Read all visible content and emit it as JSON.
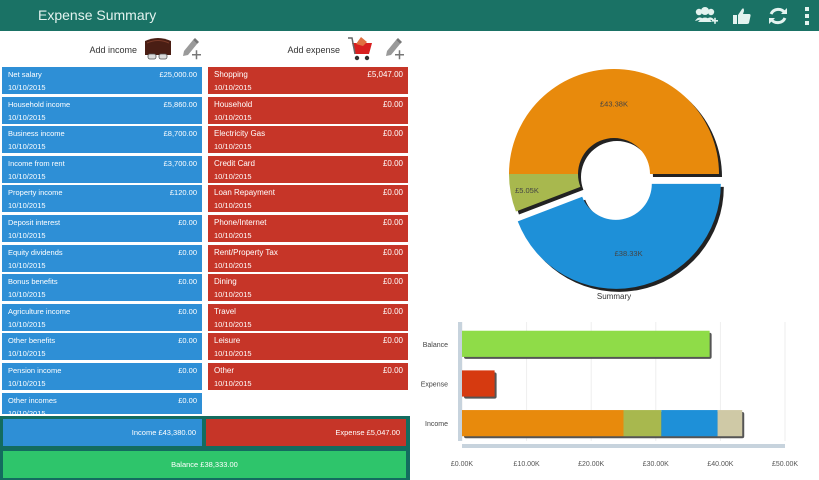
{
  "app": {
    "title": "Expense Summary",
    "actions": [
      {
        "name": "add-contact-icon"
      },
      {
        "name": "thumbs-up-icon"
      },
      {
        "name": "refresh-icon"
      },
      {
        "name": "more-vert-icon"
      }
    ]
  },
  "income": {
    "add_label": "Add income",
    "items": [
      {
        "name": "Net salary",
        "amount": "£25,000.00",
        "date": "10/10/2015"
      },
      {
        "name": "Household income",
        "amount": "£5,860.00",
        "date": "10/10/2015"
      },
      {
        "name": "Business income",
        "amount": "£8,700.00",
        "date": "10/10/2015"
      },
      {
        "name": "Income from rent",
        "amount": "£3,700.00",
        "date": "10/10/2015"
      },
      {
        "name": "Property income",
        "amount": "£120.00",
        "date": "10/10/2015"
      },
      {
        "name": "Deposit interest",
        "amount": "£0.00",
        "date": "10/10/2015"
      },
      {
        "name": "Equity dividends",
        "amount": "£0.00",
        "date": "10/10/2015"
      },
      {
        "name": "Bonus benefits",
        "amount": "£0.00",
        "date": "10/10/2015"
      },
      {
        "name": "Agriculture income",
        "amount": "£0.00",
        "date": "10/10/2015"
      },
      {
        "name": "Other benefits",
        "amount": "£0.00",
        "date": "10/10/2015"
      },
      {
        "name": "Pension income",
        "amount": "£0.00",
        "date": "10/10/2015"
      },
      {
        "name": "Other incomes",
        "amount": "£0.00",
        "date": "10/10/2015"
      }
    ]
  },
  "expense": {
    "add_label": "Add expense",
    "items": [
      {
        "name": "Shopping",
        "amount": "£5,047.00",
        "date": "10/10/2015"
      },
      {
        "name": "Household",
        "amount": "£0.00",
        "date": "10/10/2015"
      },
      {
        "name": "Electricity Gas",
        "amount": "£0.00",
        "date": "10/10/2015"
      },
      {
        "name": "Credit Card",
        "amount": "£0.00",
        "date": "10/10/2015"
      },
      {
        "name": "Loan Repayment",
        "amount": "£0.00",
        "date": "10/10/2015"
      },
      {
        "name": "Phone/Internet",
        "amount": "£0.00",
        "date": "10/10/2015"
      },
      {
        "name": "Rent/Property Tax",
        "amount": "£0.00",
        "date": "10/10/2015"
      },
      {
        "name": "Dining",
        "amount": "£0.00",
        "date": "10/10/2015"
      },
      {
        "name": "Travel",
        "amount": "£0.00",
        "date": "10/10/2015"
      },
      {
        "name": "Leisure",
        "amount": "£0.00",
        "date": "10/10/2015"
      },
      {
        "name": "Other",
        "amount": "£0.00",
        "date": "10/10/2015"
      }
    ]
  },
  "totals": {
    "income": "Income £43,380.00",
    "expense": "Expense £5,047.00",
    "balance": "Balance £38,333.00"
  },
  "colors": {
    "header": "#1a7265",
    "income": "#2e8fd6",
    "expense": "#c63528",
    "balance": "#2ec56b",
    "orange": "#e88a0c",
    "olive": "#a8b84e",
    "blue": "#1e90d8",
    "tan": "#cfc9a6",
    "green": "#8fdc48",
    "red": "#d63a10"
  },
  "chart_data": [
    {
      "type": "pie",
      "title": "Summary",
      "donut": true,
      "slices": [
        {
          "label": "£43.38K",
          "value": 43380,
          "color": "#e88a0c"
        },
        {
          "label": "£5.05K",
          "value": 5047,
          "color": "#a8b84e"
        },
        {
          "label": "£38.33K",
          "value": 38333,
          "color": "#1e90d8"
        }
      ]
    },
    {
      "type": "bar",
      "orientation": "horizontal",
      "stacked": true,
      "categories": [
        "Balance",
        "Expense",
        "Income"
      ],
      "series": [
        {
          "category": "Balance",
          "segments": [
            {
              "value": 38333,
              "color": "#8fdc48"
            }
          ]
        },
        {
          "category": "Expense",
          "segments": [
            {
              "value": 5047,
              "color": "#d63a10"
            }
          ]
        },
        {
          "category": "Income",
          "segments": [
            {
              "value": 25000,
              "color": "#e88a0c"
            },
            {
              "value": 5860,
              "color": "#a8b84e"
            },
            {
              "value": 8700,
              "color": "#1e90d8"
            },
            {
              "value": 3820,
              "color": "#cfc9a6"
            }
          ]
        }
      ],
      "xlim": [
        0,
        50000
      ],
      "xticks": [
        "£0.00K",
        "£10.00K",
        "£20.00K",
        "£30.00K",
        "£40.00K",
        "£50.00K"
      ],
      "xtick_values": [
        0,
        10000,
        20000,
        30000,
        40000,
        50000
      ],
      "grid": true
    }
  ]
}
